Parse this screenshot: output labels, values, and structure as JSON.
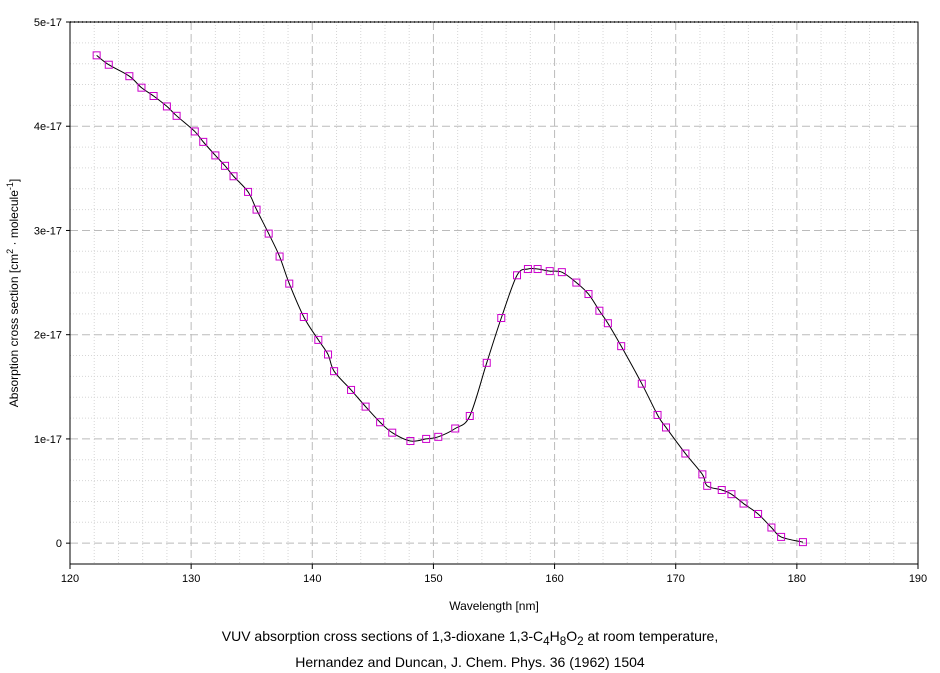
{
  "chart_data": {
    "type": "line",
    "xlabel": "Wavelength [nm]",
    "ylabel_parts": [
      "Absorption cross section [cm",
      "2",
      " · molecule",
      "-1",
      "]"
    ],
    "xlim": [
      120,
      190
    ],
    "ylim": [
      -2e-18,
      5e-17
    ],
    "x_ticks": [
      {
        "value": 120,
        "label": "120"
      },
      {
        "value": 130,
        "label": "130"
      },
      {
        "value": 140,
        "label": "140"
      },
      {
        "value": 150,
        "label": "150"
      },
      {
        "value": 160,
        "label": "160"
      },
      {
        "value": 170,
        "label": "170"
      },
      {
        "value": 180,
        "label": "180"
      },
      {
        "value": 190,
        "label": "190"
      }
    ],
    "y_ticks": [
      {
        "value": 0,
        "label": "0"
      },
      {
        "value": 1e-17,
        "label": "1e-17"
      },
      {
        "value": 2e-17,
        "label": "2e-17"
      },
      {
        "value": 3e-17,
        "label": "3e-17"
      },
      {
        "value": 4e-17,
        "label": "4e-17"
      },
      {
        "value": 5e-17,
        "label": "5e-17"
      }
    ],
    "grid": true,
    "marker": "square",
    "line_color": "#000000",
    "marker_color": "#cc00cc",
    "series": [
      {
        "x": [
          122.2,
          123.2,
          124.9,
          125.9,
          126.9,
          128.0,
          128.8,
          130.3,
          131.0,
          132.0,
          132.8,
          133.5,
          134.7,
          135.4,
          136.4,
          137.3,
          138.1,
          139.3,
          140.5,
          141.3,
          141.8,
          143.2,
          144.4,
          145.6,
          146.6,
          148.1,
          149.4,
          150.4,
          151.8,
          153.0,
          154.4,
          155.6,
          156.9,
          157.8,
          158.6,
          159.6,
          160.6,
          161.8,
          162.8,
          163.7,
          164.4,
          165.5,
          167.2,
          168.5,
          169.2,
          170.8,
          172.2,
          172.6,
          173.8,
          174.6,
          175.6,
          176.8,
          177.9,
          178.7,
          180.5
        ],
        "y": [
          4.68e-17,
          4.59e-17,
          4.48e-17,
          4.37e-17,
          4.29e-17,
          4.19e-17,
          4.1e-17,
          3.95e-17,
          3.85e-17,
          3.72e-17,
          3.62e-17,
          3.52e-17,
          3.37e-17,
          3.2e-17,
          2.97e-17,
          2.75e-17,
          2.49e-17,
          2.17e-17,
          1.95e-17,
          1.81e-17,
          1.65e-17,
          1.47e-17,
          1.31e-17,
          1.16e-17,
          1.06e-17,
          9.8e-18,
          1e-17,
          1.02e-17,
          1.1e-17,
          1.22e-17,
          1.73e-17,
          2.16e-17,
          2.57e-17,
          2.63e-17,
          2.63e-17,
          2.61e-17,
          2.6e-17,
          2.5e-17,
          2.39e-17,
          2.23e-17,
          2.11e-17,
          1.89e-17,
          1.53e-17,
          1.23e-17,
          1.11e-17,
          8.6e-18,
          6.6e-18,
          5.5e-18,
          5.1e-18,
          4.7e-18,
          3.8e-18,
          2.8e-18,
          1.5e-18,
          6e-19,
          1e-19
        ]
      }
    ]
  },
  "caption": {
    "line1_parts": [
      "VUV absorption cross sections of 1,3-dioxane 1,3-C",
      "4",
      "H",
      "8",
      "O",
      "2",
      " at room temperature,"
    ],
    "line2": "Hernandez and Duncan, J. Chem. Phys. 36 (1962) 1504"
  }
}
